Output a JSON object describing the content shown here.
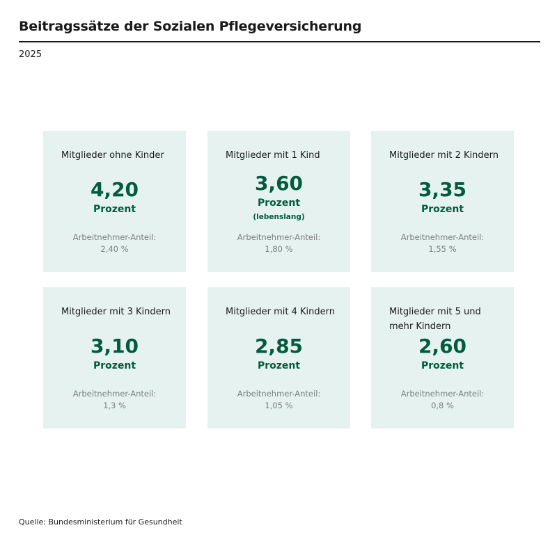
{
  "header": {
    "title": "Beitragssätze der Sozialen Pflegeversicherung",
    "subtitle": "2025"
  },
  "colors": {
    "accent": "#005c3c",
    "card_bg": "#e6f2ef"
  },
  "cards": [
    {
      "title": "Mitglieder ohne Kinder",
      "value": "4,20",
      "unit": "Prozent",
      "share_label": "Arbeitnehmer-Anteil:",
      "share": "2,40 %"
    },
    {
      "title": "Mitglieder mit 1 Kind",
      "value": "3,60",
      "unit": "Prozent",
      "note": "(lebenslang)",
      "share_label": "Arbeitnehmer-Anteil:",
      "share": "1,80 %"
    },
    {
      "title": "Mitglieder mit 2 Kindern",
      "value": "3,35",
      "unit": "Prozent",
      "share_label": "Arbeitnehmer-Anteil:",
      "share": "1,55 %"
    },
    {
      "title": "Mitglieder mit 3 Kindern",
      "value": "3,10",
      "unit": "Prozent",
      "share_label": "Arbeitnehmer-Anteil:",
      "share": "1,3 %"
    },
    {
      "title": "Mitglieder mit 4 Kindern",
      "value": "2,85",
      "unit": "Prozent",
      "share_label": "Arbeitnehmer-Anteil:",
      "share": "1,05 %"
    },
    {
      "title": "Mitglieder mit 5 und mehr Kindern",
      "value": "2,60",
      "unit": "Prozent",
      "share_label": "Arbeitnehmer-Anteil:",
      "share": "0,8 %"
    }
  ],
  "footer": {
    "source": "Quelle: Bundesministerium für Gesundheit"
  }
}
